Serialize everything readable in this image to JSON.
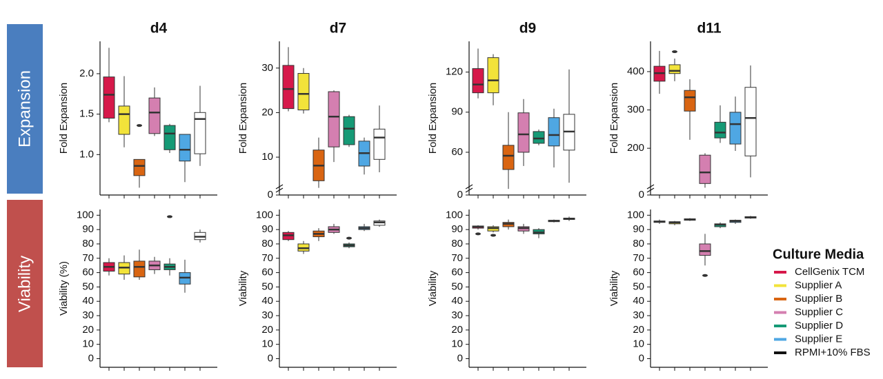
{
  "row_labels": [
    "Expansion",
    "Viability"
  ],
  "legend": {
    "title": "Culture Media",
    "items": [
      {
        "name": "CellGenix TCM",
        "color": "#d6184a",
        "fill": "#d6184a"
      },
      {
        "name": "Supplier A",
        "color": "#f2e33a",
        "fill": "#f2e33a"
      },
      {
        "name": "Supplier B",
        "color": "#d96512",
        "fill": "#d96512"
      },
      {
        "name": "Supplier C",
        "color": "#d47fb0",
        "fill": "#d47fb0"
      },
      {
        "name": "Supplier D",
        "color": "#169a76",
        "fill": "#169a76"
      },
      {
        "name": "Supplier E",
        "color": "#4fa7e3",
        "fill": "#4fa7e3"
      },
      {
        "name": "RPMI+10% FBS",
        "color": "#111111",
        "fill": "#ffffff"
      }
    ]
  },
  "chart_data": [
    {
      "type": "box",
      "title": "d4",
      "ylabel": "Fold Expansion",
      "ylim": [
        0.5,
        2.4
      ],
      "yticks": [
        {
          "value": 1,
          "label": "1.0"
        },
        1.5,
        {
          "value": 2,
          "label": "2.0"
        }
      ],
      "boxes": [
        {
          "min": 1.4,
          "q1": 1.45,
          "median": 1.74,
          "q3": 1.96,
          "max": 2.32
        },
        {
          "min": 1.09,
          "q1": 1.25,
          "median": 1.5,
          "q3": 1.6,
          "max": 1.97
        },
        {
          "min": 0.59,
          "q1": 0.74,
          "median": 0.86,
          "q3": 0.94,
          "max": 0.94,
          "outliers": [
            1.36
          ]
        },
        {
          "min": 1.23,
          "q1": 1.26,
          "median": 1.52,
          "q3": 1.7,
          "max": 1.83
        },
        {
          "min": 1.02,
          "q1": 1.06,
          "median": 1.26,
          "q3": 1.36,
          "max": 1.38
        },
        {
          "min": 0.66,
          "q1": 0.92,
          "median": 1.06,
          "q3": 1.25,
          "max": 1.25
        },
        {
          "min": 0.86,
          "q1": 1.01,
          "median": 1.44,
          "q3": 1.52,
          "max": 1.85
        }
      ]
    },
    {
      "type": "box",
      "title": "d7",
      "ylabel": "Fold Expansion",
      "ylim": [
        0,
        36
      ],
      "axis_break": [
        0,
        1.5
      ],
      "yticks": [
        0,
        10,
        20,
        30
      ],
      "boxes": [
        {
          "min": 20.3,
          "q1": 20.9,
          "median": 25.3,
          "q3": 30.6,
          "max": 34.7
        },
        {
          "min": 19.8,
          "q1": 20.6,
          "median": 24.2,
          "q3": 28.8,
          "max": 30
        },
        {
          "min": 3.1,
          "q1": 4.7,
          "median": 8.1,
          "q3": 11.6,
          "max": 14.4
        },
        {
          "min": 8.9,
          "q1": 12.3,
          "median": 19.1,
          "q3": 24.7,
          "max": 25
        },
        {
          "min": 12.3,
          "q1": 12.8,
          "median": 16.4,
          "q3": 19.1,
          "max": 19.5
        },
        {
          "min": 6.1,
          "q1": 8,
          "median": 10.9,
          "q3": 13.6,
          "max": 14.4
        },
        {
          "min": 6.6,
          "q1": 9.5,
          "median": 14.4,
          "q3": 16.3,
          "max": 21.6
        }
      ]
    },
    {
      "type": "box",
      "title": "d9",
      "ylabel": "Fold Expansion",
      "ylim": [
        0,
        143
      ],
      "axis_break": [
        0,
        28
      ],
      "yticks": [
        0,
        60,
        90,
        120
      ],
      "boxes": [
        {
          "min": 100.3,
          "q1": 104.5,
          "median": 110.7,
          "q3": 122.6,
          "max": 137.6
        },
        {
          "min": 95.2,
          "q1": 104.5,
          "median": 113.8,
          "q3": 130.8,
          "max": 133.4
        },
        {
          "min": 32.6,
          "q1": 47.1,
          "median": 57.4,
          "q3": 65.2,
          "max": 90
        },
        {
          "min": 49.7,
          "q1": 60,
          "median": 73.4,
          "q3": 89.5,
          "max": 99.8
        },
        {
          "min": 65.2,
          "q1": 66.7,
          "median": 70.3,
          "q3": 75.5,
          "max": 77
        },
        {
          "min": 48.6,
          "q1": 64.7,
          "median": 72.9,
          "q3": 85.9,
          "max": 92.6
        },
        {
          "min": 37.2,
          "q1": 61.6,
          "median": 75.5,
          "q3": 88.4,
          "max": 122
        }
      ]
    },
    {
      "type": "box",
      "title": "d11",
      "ylabel": "Fold Expansion",
      "ylim": [
        0,
        479
      ],
      "axis_break": [
        0,
        78
      ],
      "yticks": [
        0,
        200,
        300,
        400
      ],
      "boxes": [
        {
          "min": 342,
          "q1": 375,
          "median": 396,
          "q3": 414,
          "max": 454
        },
        {
          "min": 375,
          "q1": 395,
          "median": 402,
          "q3": 418,
          "max": 434,
          "outliers": [
            452
          ]
        },
        {
          "min": 222,
          "q1": 297,
          "median": 333,
          "q3": 351,
          "max": 380
        },
        {
          "min": 97,
          "q1": 108,
          "median": 137,
          "q3": 182,
          "max": 187
        },
        {
          "min": 214,
          "q1": 227,
          "median": 241,
          "q3": 268,
          "max": 312
        },
        {
          "min": 193,
          "q1": 211,
          "median": 263,
          "q3": 294,
          "max": 335
        },
        {
          "min": 124,
          "q1": 180,
          "median": 279,
          "q3": 359,
          "max": 416
        }
      ]
    },
    {
      "type": "box",
      "ylabel": "Viability (%)",
      "ylim": [
        -6,
        104
      ],
      "yticks": [
        0,
        10,
        20,
        30,
        40,
        50,
        60,
        70,
        80,
        90,
        100
      ],
      "boxes": [
        {
          "min": 58,
          "q1": 61,
          "median": 64,
          "q3": 67,
          "max": 70
        },
        {
          "min": 55,
          "q1": 59,
          "median": 63.5,
          "q3": 67,
          "max": 72
        },
        {
          "min": 55,
          "q1": 57,
          "median": 64,
          "q3": 68,
          "max": 76
        },
        {
          "min": 59,
          "q1": 62,
          "median": 65,
          "q3": 68,
          "max": 71
        },
        {
          "min": 58,
          "q1": 62,
          "median": 64,
          "q3": 66,
          "max": 70,
          "outliers": [
            99
          ]
        },
        {
          "min": 46,
          "q1": 52,
          "median": 56.5,
          "q3": 60,
          "max": 69
        },
        {
          "min": 81,
          "q1": 83,
          "median": 85,
          "q3": 88,
          "max": 90
        }
      ]
    },
    {
      "type": "box",
      "ylabel": "Viability",
      "ylim": [
        -6,
        104
      ],
      "yticks": [
        0,
        10,
        20,
        30,
        40,
        50,
        60,
        70,
        80,
        90,
        100
      ],
      "boxes": [
        {
          "min": 82,
          "q1": 83,
          "median": 86,
          "q3": 88,
          "max": 89
        },
        {
          "min": 73,
          "q1": 75,
          "median": 77,
          "q3": 80,
          "max": 82
        },
        {
          "min": 82,
          "q1": 85,
          "median": 87,
          "q3": 89,
          "max": 91
        },
        {
          "min": 87,
          "q1": 88,
          "median": 90,
          "q3": 92,
          "max": 94
        },
        {
          "min": 77,
          "q1": 78,
          "median": 79,
          "q3": 80,
          "max": 81,
          "outliers": [
            84
          ]
        },
        {
          "min": 89,
          "q1": 90,
          "median": 91,
          "q3": 92,
          "max": 94
        },
        {
          "min": 92,
          "q1": 93,
          "median": 95,
          "q3": 96,
          "max": 97
        }
      ]
    },
    {
      "type": "box",
      "ylabel": "Viability",
      "ylim": [
        -6,
        104
      ],
      "yticks": [
        0,
        10,
        20,
        30,
        40,
        50,
        60,
        70,
        80,
        90,
        100
      ],
      "boxes": [
        {
          "min": 90,
          "q1": 91,
          "median": 92,
          "q3": 92.5,
          "max": 93,
          "outliers": [
            87
          ]
        },
        {
          "min": 88,
          "q1": 89,
          "median": 91,
          "q3": 92,
          "max": 93,
          "outliers": [
            86
          ]
        },
        {
          "min": 90,
          "q1": 92,
          "median": 94,
          "q3": 95,
          "max": 97
        },
        {
          "min": 87,
          "q1": 89,
          "median": 91,
          "q3": 92,
          "max": 94
        },
        {
          "min": 84,
          "q1": 87,
          "median": 88,
          "q3": 90,
          "max": 91
        },
        {
          "min": 95,
          "q1": 95.5,
          "median": 96,
          "q3": 96.5,
          "max": 97
        },
        {
          "min": 96,
          "q1": 97,
          "median": 97.5,
          "q3": 98,
          "max": 99
        }
      ]
    },
    {
      "type": "box",
      "ylabel": "Viability",
      "ylim": [
        -6,
        104
      ],
      "yticks": [
        0,
        10,
        20,
        30,
        40,
        50,
        60,
        70,
        80,
        90,
        100
      ],
      "boxes": [
        {
          "min": 94,
          "q1": 95,
          "median": 95.5,
          "q3": 96,
          "max": 97
        },
        {
          "min": 93,
          "q1": 94,
          "median": 95,
          "q3": 95.5,
          "max": 96
        },
        {
          "min": 96,
          "q1": 96.5,
          "median": 97,
          "q3": 97.5,
          "max": 98
        },
        {
          "min": 65,
          "q1": 72,
          "median": 75,
          "q3": 80,
          "max": 87,
          "outliers": [
            58
          ]
        },
        {
          "min": 91,
          "q1": 92,
          "median": 93.5,
          "q3": 94,
          "max": 95
        },
        {
          "min": 94,
          "q1": 95,
          "median": 96,
          "q3": 96.5,
          "max": 97
        },
        {
          "min": 97.5,
          "q1": 98,
          "median": 98.5,
          "q3": 99,
          "max": 99.5
        }
      ]
    }
  ]
}
